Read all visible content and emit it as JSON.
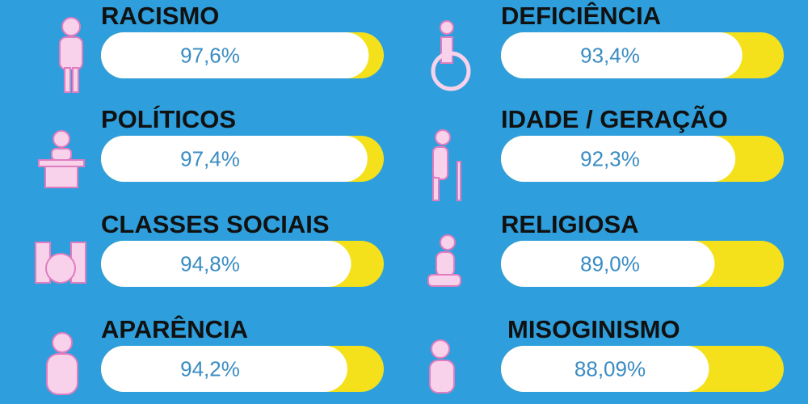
{
  "chart_data": {
    "type": "bar",
    "categories": [
      "RACISMO",
      "POLÍTICOS",
      "CLASSES SOCIAIS",
      "APARÊNCIA",
      "DEFICIÊNCIA",
      "IDADE / GERAÇÃO",
      "RELIGIOSA",
      "MISOGINISMO"
    ],
    "values": [
      97.6,
      97.4,
      94.8,
      94.2,
      93.4,
      92.3,
      89.0,
      88.09
    ],
    "value_labels": [
      "97,6%",
      "97,4%",
      "94,8%",
      "94,2%",
      "93,4%",
      "92,3%",
      "89,0%",
      "88,09%"
    ],
    "xlim": [
      55,
      100
    ],
    "color": "#ffffff",
    "track_color": "#f4e11c"
  }
}
